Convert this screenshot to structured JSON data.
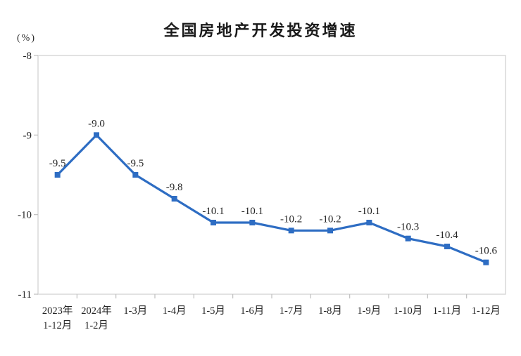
{
  "chart_data": {
    "type": "line",
    "title": "全国房地产开发投资增速",
    "unit_label": "(%)",
    "categories": [
      [
        "2023年",
        "1-12月"
      ],
      [
        "2024年",
        "1-2月"
      ],
      [
        "1-3月"
      ],
      [
        "1-4月"
      ],
      [
        "1-5月"
      ],
      [
        "1-6月"
      ],
      [
        "1-7月"
      ],
      [
        "1-8月"
      ],
      [
        "1-9月"
      ],
      [
        "1-10月"
      ],
      [
        "1-11月"
      ],
      [
        "1-12月"
      ]
    ],
    "values": [
      -9.5,
      -9.0,
      -9.5,
      -9.8,
      -10.1,
      -10.1,
      -10.2,
      -10.2,
      -10.1,
      -10.3,
      -10.4,
      -10.6
    ],
    "point_labels": [
      "-9.5",
      "-9.0",
      "-9.5",
      "-9.8",
      "-10.1",
      "-10.1",
      "-10.2",
      "-10.2",
      "-10.1",
      "-10.3",
      "-10.4",
      "-10.6"
    ],
    "y_ticks": [
      "-8",
      "-9",
      "-10",
      "-11"
    ],
    "y_tick_values": [
      -8,
      -9,
      -10,
      -11
    ],
    "ylim": [
      -11,
      -8
    ],
    "grid": false,
    "legend_position": "none",
    "colors": {
      "line": "#2E6DC3",
      "marker": "#2E6DC3",
      "data_label": "#262626",
      "axis_text": "#262626",
      "frame": "#D9D9D9",
      "tick": "#BFBFBF",
      "background": "#FFFFFF"
    }
  }
}
